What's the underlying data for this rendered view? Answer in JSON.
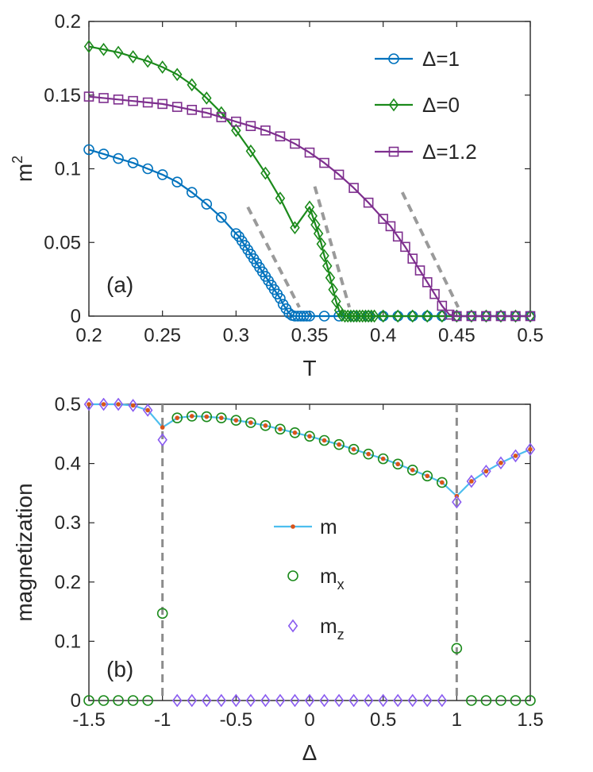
{
  "chart_data": [
    {
      "type": "line",
      "panel_label": "(a)",
      "xlabel": "T",
      "ylabel": "m",
      "ylabel_sup": "2",
      "xlim": [
        0.2,
        0.5
      ],
      "ylim": [
        0,
        0.2
      ],
      "xticks": [
        "0.2",
        "0.25",
        "0.3",
        "0.35",
        "0.4",
        "0.45",
        "0.5"
      ],
      "yticks": [
        "0",
        "0.05",
        "0.1",
        "0.15",
        "0.2"
      ],
      "legend_position": "top-right",
      "series": [
        {
          "name": "Δ=1",
          "color": "#0072BD",
          "marker": "circle",
          "x": [
            0.2,
            0.21,
            0.22,
            0.23,
            0.24,
            0.25,
            0.26,
            0.27,
            0.28,
            0.29,
            0.3,
            0.302,
            0.304,
            0.306,
            0.308,
            0.31,
            0.312,
            0.314,
            0.316,
            0.318,
            0.32,
            0.322,
            0.324,
            0.326,
            0.328,
            0.33,
            0.332,
            0.334,
            0.336,
            0.338,
            0.34,
            0.342,
            0.344,
            0.346,
            0.348,
            0.35,
            0.36,
            0.37,
            0.38,
            0.39,
            0.4,
            0.41,
            0.42,
            0.43,
            0.44,
            0.45,
            0.46,
            0.47,
            0.48,
            0.49,
            0.5
          ],
          "y": [
            0.113,
            0.11,
            0.107,
            0.104,
            0.1,
            0.096,
            0.091,
            0.084,
            0.076,
            0.067,
            0.056,
            0.054,
            0.051,
            0.048,
            0.045,
            0.042,
            0.039,
            0.036,
            0.033,
            0.03,
            0.027,
            0.024,
            0.021,
            0.018,
            0.015,
            0.012,
            0.008,
            0.005,
            0.002,
            0.0005,
            0,
            0,
            0,
            0,
            0,
            0,
            0,
            0,
            0,
            0,
            0,
            0,
            0,
            0,
            0,
            0,
            0,
            0,
            0,
            0,
            0
          ]
        },
        {
          "name": "Δ=0",
          "color": "#1B8A1B",
          "marker": "diamond",
          "x": [
            0.2,
            0.21,
            0.22,
            0.23,
            0.24,
            0.25,
            0.26,
            0.27,
            0.28,
            0.29,
            0.3,
            0.31,
            0.32,
            0.33,
            0.34,
            0.35,
            0.352,
            0.354,
            0.356,
            0.358,
            0.36,
            0.362,
            0.364,
            0.366,
            0.368,
            0.37,
            0.372,
            0.374,
            0.376,
            0.378,
            0.38,
            0.382,
            0.384,
            0.386,
            0.388,
            0.39,
            0.392,
            0.394,
            0.4,
            0.41,
            0.42,
            0.43,
            0.44,
            0.45,
            0.46,
            0.47,
            0.48,
            0.49,
            0.5
          ],
          "y": [
            0.183,
            0.181,
            0.179,
            0.176,
            0.173,
            0.169,
            0.164,
            0.157,
            0.148,
            0.138,
            0.126,
            0.112,
            0.097,
            0.08,
            0.06,
            0.074,
            0.068,
            0.062,
            0.056,
            0.049,
            0.041,
            0.034,
            0.026,
            0.018,
            0.01,
            0.004,
            0.0005,
            0,
            0,
            0,
            0,
            0,
            0,
            0,
            0,
            0,
            0,
            0,
            0,
            0,
            0,
            0,
            0,
            0,
            0,
            0,
            0,
            0,
            0
          ]
        },
        {
          "name": "Δ=1.2",
          "color": "#7E2F8E",
          "marker": "square",
          "x": [
            0.2,
            0.21,
            0.22,
            0.23,
            0.24,
            0.25,
            0.26,
            0.27,
            0.28,
            0.29,
            0.3,
            0.31,
            0.32,
            0.33,
            0.34,
            0.35,
            0.36,
            0.37,
            0.38,
            0.39,
            0.4,
            0.405,
            0.41,
            0.415,
            0.42,
            0.425,
            0.43,
            0.435,
            0.44,
            0.445,
            0.45,
            0.46,
            0.47,
            0.48,
            0.49,
            0.5
          ],
          "y": [
            0.149,
            0.148,
            0.147,
            0.146,
            0.145,
            0.144,
            0.142,
            0.14,
            0.138,
            0.135,
            0.132,
            0.129,
            0.126,
            0.122,
            0.117,
            0.111,
            0.104,
            0.096,
            0.087,
            0.077,
            0.066,
            0.061,
            0.054,
            0.047,
            0.039,
            0.031,
            0.023,
            0.015,
            0.007,
            0.001,
            0,
            0,
            0,
            0,
            0,
            0
          ]
        }
      ],
      "guides": [
        {
          "x": [
            0.308,
            0.343
          ],
          "y": [
            0.074,
            0.006
          ]
        },
        {
          "x": [
            0.3535,
            0.377
          ],
          "y": [
            0.088,
            0.006
          ]
        },
        {
          "x": [
            0.413,
            0.451
          ],
          "y": [
            0.084,
            0.006
          ]
        }
      ]
    },
    {
      "type": "line",
      "panel_label": "(b)",
      "xlabel": "Δ",
      "ylabel": "magnetization",
      "xlim": [
        -1.5,
        1.5
      ],
      "ylim": [
        0,
        0.5
      ],
      "xticks": [
        "-1.5",
        "-1",
        "-0.5",
        "0",
        "0.5",
        "1",
        "1.5"
      ],
      "yticks": [
        "0",
        "0.1",
        "0.2",
        "0.3",
        "0.4",
        "0.5"
      ],
      "legend_position": "center",
      "vlines": [
        -1,
        1
      ],
      "series": [
        {
          "name": "m",
          "color": "#4DBEEE",
          "marker_color": "#D95319",
          "marker": "dot",
          "x": [
            -1.5,
            -1.4,
            -1.3,
            -1.2,
            -1.1,
            -1,
            -0.9,
            -0.8,
            -0.7,
            -0.6,
            -0.5,
            -0.4,
            -0.3,
            -0.2,
            -0.1,
            0,
            0.1,
            0.2,
            0.3,
            0.4,
            0.5,
            0.6,
            0.7,
            0.8,
            0.9,
            1,
            1.1,
            1.2,
            1.3,
            1.4,
            1.5
          ],
          "y": [
            0.5,
            0.5,
            0.5,
            0.498,
            0.49,
            0.461,
            0.477,
            0.48,
            0.479,
            0.477,
            0.473,
            0.469,
            0.464,
            0.458,
            0.452,
            0.446,
            0.439,
            0.432,
            0.424,
            0.416,
            0.408,
            0.399,
            0.389,
            0.379,
            0.368,
            0.345,
            0.37,
            0.387,
            0.401,
            0.413,
            0.424
          ]
        },
        {
          "name": "m",
          "name_sub": "x",
          "color": "#1B8A1B",
          "marker": "circle",
          "x": [
            -1.5,
            -1.4,
            -1.3,
            -1.2,
            -1.1,
            -1,
            -0.9,
            -0.8,
            -0.7,
            -0.6,
            -0.5,
            -0.4,
            -0.3,
            -0.2,
            -0.1,
            0,
            0.1,
            0.2,
            0.3,
            0.4,
            0.5,
            0.6,
            0.7,
            0.8,
            0.9,
            1,
            1.1,
            1.2,
            1.3,
            1.4,
            1.5
          ],
          "y": [
            0,
            0,
            0,
            0,
            0,
            0.147,
            0.477,
            0.48,
            0.479,
            0.477,
            0.473,
            0.469,
            0.464,
            0.458,
            0.452,
            0.446,
            0.439,
            0.432,
            0.424,
            0.416,
            0.408,
            0.399,
            0.389,
            0.379,
            0.368,
            0.088,
            0,
            0,
            0,
            0,
            0
          ]
        },
        {
          "name": "m",
          "name_sub": "z",
          "color": "#8A5CF0",
          "marker": "diamond",
          "x": [
            -1.5,
            -1.4,
            -1.3,
            -1.2,
            -1.1,
            -1,
            -0.9,
            -0.8,
            -0.7,
            -0.6,
            -0.5,
            -0.4,
            -0.3,
            -0.2,
            -0.1,
            0,
            0.1,
            0.2,
            0.3,
            0.4,
            0.5,
            0.6,
            0.7,
            0.8,
            0.9,
            1,
            1.1,
            1.2,
            1.3,
            1.4,
            1.5
          ],
          "y": [
            0.5,
            0.5,
            0.5,
            0.498,
            0.49,
            0.44,
            0,
            0,
            0,
            0,
            0,
            0,
            0,
            0,
            0,
            0,
            0,
            0,
            0,
            0,
            0,
            0,
            0,
            0,
            0,
            0.335,
            0.37,
            0.387,
            0.401,
            0.413,
            0.424
          ]
        }
      ]
    }
  ]
}
